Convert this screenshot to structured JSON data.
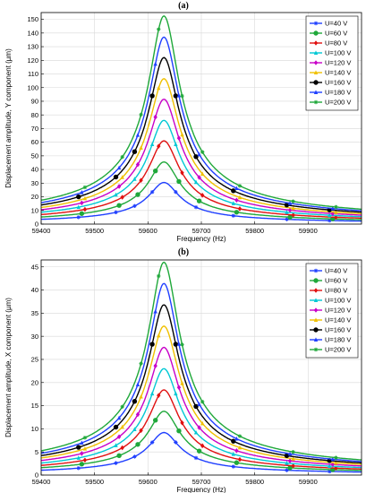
{
  "chart_data": [
    {
      "panel_label": "(a)",
      "type": "line",
      "xlabel": "Frequency (Hz)",
      "ylabel": "Displacement amplitude, Y component (µm)",
      "xlim": [
        59400,
        60000
      ],
      "ylim": [
        0,
        155
      ],
      "xticks": [
        59400,
        59500,
        59600,
        59700,
        59800,
        59900
      ],
      "yticks": [
        0,
        10,
        20,
        30,
        40,
        50,
        60,
        70,
        80,
        90,
        100,
        110,
        120,
        130,
        140,
        150
      ],
      "grid": true,
      "legend_position": "top-right",
      "resonance_hz": 59630,
      "half_width_hz": 50,
      "series": [
        {
          "name": "U=40 V",
          "color": "#1f3fff",
          "marker": "star",
          "peak": 30.5,
          "edge": 3.5
        },
        {
          "name": "U=60 V",
          "color": "#1fa83a",
          "marker": "circle",
          "peak": 45.5,
          "edge": 5.2
        },
        {
          "name": "U=80 V",
          "color": "#e01010",
          "marker": "diamond",
          "peak": 61,
          "edge": 7
        },
        {
          "name": "U=100 V",
          "color": "#00c8d4",
          "marker": "triangle",
          "peak": 76,
          "edge": 8.7
        },
        {
          "name": "U=120 V",
          "color": "#c800c8",
          "marker": "diamond",
          "peak": 91.5,
          "edge": 10.5
        },
        {
          "name": "U=140 V",
          "color": "#f0c000",
          "marker": "triangle",
          "peak": 106.5,
          "edge": 12.2
        },
        {
          "name": "U=160 V",
          "color": "#000000",
          "marker": "circle",
          "peak": 122,
          "edge": 14
        },
        {
          "name": "U=180 V",
          "color": "#1f3fff",
          "marker": "triangle",
          "peak": 137,
          "edge": 15.7
        },
        {
          "name": "U=200 V",
          "color": "#1fa83a",
          "marker": "star",
          "peak": 152.5,
          "edge": 17.5
        }
      ]
    },
    {
      "panel_label": "(b)",
      "type": "line",
      "xlabel": "Frequency (Hz)",
      "ylabel": "Displacement amplitude, X component (µm)",
      "xlim": [
        59400,
        60000
      ],
      "ylim": [
        0,
        46.5
      ],
      "xticks": [
        59400,
        59500,
        59600,
        59700,
        59800,
        59900
      ],
      "yticks": [
        0,
        5,
        10,
        15,
        20,
        25,
        30,
        35,
        40,
        45
      ],
      "grid": true,
      "legend_position": "top-right",
      "resonance_hz": 59630,
      "half_width_hz": 50,
      "series": [
        {
          "name": "U=40 V",
          "color": "#1f3fff",
          "marker": "star",
          "peak": 9.2,
          "edge": 1.05
        },
        {
          "name": "U=60 V",
          "color": "#1fa83a",
          "marker": "circle",
          "peak": 13.8,
          "edge": 1.6
        },
        {
          "name": "U=80 V",
          "color": "#e01010",
          "marker": "diamond",
          "peak": 18.4,
          "edge": 2.1
        },
        {
          "name": "U=100 V",
          "color": "#00c8d4",
          "marker": "triangle",
          "peak": 23,
          "edge": 2.6
        },
        {
          "name": "U=120 V",
          "color": "#c800c8",
          "marker": "diamond",
          "peak": 27.6,
          "edge": 3.15
        },
        {
          "name": "U=140 V",
          "color": "#f0c000",
          "marker": "triangle",
          "peak": 32.2,
          "edge": 3.7
        },
        {
          "name": "U=160 V",
          "color": "#000000",
          "marker": "circle",
          "peak": 36.8,
          "edge": 4.2
        },
        {
          "name": "U=180 V",
          "color": "#1f3fff",
          "marker": "triangle",
          "peak": 41.4,
          "edge": 4.7
        },
        {
          "name": "U=200 V",
          "color": "#1fa83a",
          "marker": "star",
          "peak": 46,
          "edge": 5.25
        }
      ]
    }
  ]
}
